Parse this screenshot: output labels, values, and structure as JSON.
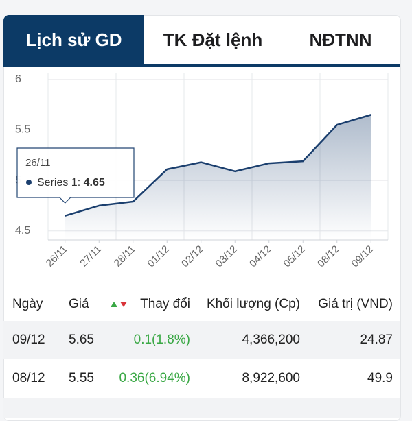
{
  "tabs": [
    "Lịch sử GD",
    "TK Đặt lệnh",
    "NĐTNN"
  ],
  "chart_data": {
    "type": "area",
    "categories": [
      "26/11",
      "27/11",
      "28/11",
      "01/12",
      "02/12",
      "03/12",
      "04/12",
      "05/12",
      "08/12",
      "09/12"
    ],
    "series": [
      {
        "name": "Series 1",
        "color": "#1b3f6e",
        "values": [
          4.65,
          4.75,
          4.79,
          5.11,
          5.18,
          5.09,
          5.17,
          5.19,
          5.55,
          5.65
        ]
      }
    ],
    "ylim": [
      4.41,
      6.06
    ],
    "yticks": [
      4.5,
      5,
      5.5,
      6
    ],
    "grid": true,
    "tooltip": {
      "category": 0,
      "series": 0
    }
  },
  "table": {
    "headers": [
      "Ngày",
      "Giá",
      "Thay đổi",
      "Khối lượng (Cp)",
      "Giá trị (VND)"
    ],
    "rows": [
      [
        "09/12",
        "5.65",
        "0.1(1.8%)",
        "4,366,200",
        "24.87"
      ],
      [
        "08/12",
        "5.55",
        "0.36(6.94%)",
        "8,922,600",
        "49.9"
      ]
    ]
  }
}
